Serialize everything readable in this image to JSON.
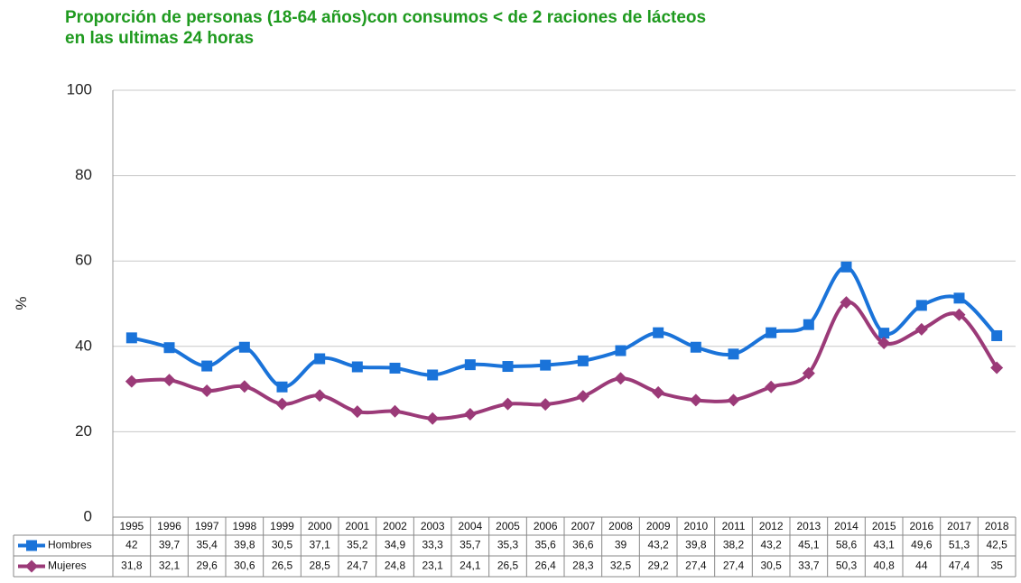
{
  "chart_data": {
    "type": "line",
    "title": [
      "Proporción de personas (18-64 años)con consumos < de 2 raciones de lácteos",
      "en las ultimas 24 horas"
    ],
    "y_label": "%",
    "categories": [
      "1995",
      "1996",
      "1997",
      "1998",
      "1999",
      "2000",
      "2001",
      "2002",
      "2003",
      "2004",
      "2005",
      "2006",
      "2007",
      "2008",
      "2009",
      "2010",
      "2011",
      "2012",
      "2013",
      "2014",
      "2015",
      "2016",
      "2017",
      "2018"
    ],
    "series": [
      {
        "name": "Hombres",
        "color": "#1a73d9",
        "marker": "square",
        "values": [
          42,
          39.7,
          35.4,
          39.8,
          30.5,
          37.1,
          35.2,
          34.9,
          33.3,
          35.7,
          35.3,
          35.6,
          36.6,
          39,
          43.2,
          39.8,
          38.2,
          43.2,
          45.1,
          58.6,
          43.1,
          49.6,
          51.3,
          42.5
        ],
        "value_labels": [
          "42",
          "39,7",
          "35,4",
          "39,8",
          "30,5",
          "37,1",
          "35,2",
          "34,9",
          "33,3",
          "35,7",
          "35,3",
          "35,6",
          "36,6",
          "39",
          "43,2",
          "39,8",
          "38,2",
          "43,2",
          "45,1",
          "58,6",
          "43,1",
          "49,6",
          "51,3",
          "42,5"
        ]
      },
      {
        "name": "Mujeres",
        "color": "#9b3a78",
        "marker": "diamond",
        "values": [
          31.8,
          32.1,
          29.6,
          30.6,
          26.5,
          28.5,
          24.7,
          24.8,
          23.1,
          24.1,
          26.5,
          26.4,
          28.3,
          32.5,
          29.2,
          27.4,
          27.4,
          30.5,
          33.7,
          50.3,
          40.8,
          44,
          47.4,
          35
        ],
        "value_labels": [
          "31,8",
          "32,1",
          "29,6",
          "30,6",
          "26,5",
          "28,5",
          "24,7",
          "24,8",
          "23,1",
          "24,1",
          "26,5",
          "26,4",
          "28,3",
          "32,5",
          "29,2",
          "27,4",
          "27,4",
          "30,5",
          "33,7",
          "50,3",
          "40,8",
          "44",
          "47,4",
          "35"
        ]
      }
    ],
    "ylim": [
      0,
      100
    ],
    "yticks": [
      0,
      20,
      40,
      60,
      80,
      100
    ],
    "grid": true
  }
}
